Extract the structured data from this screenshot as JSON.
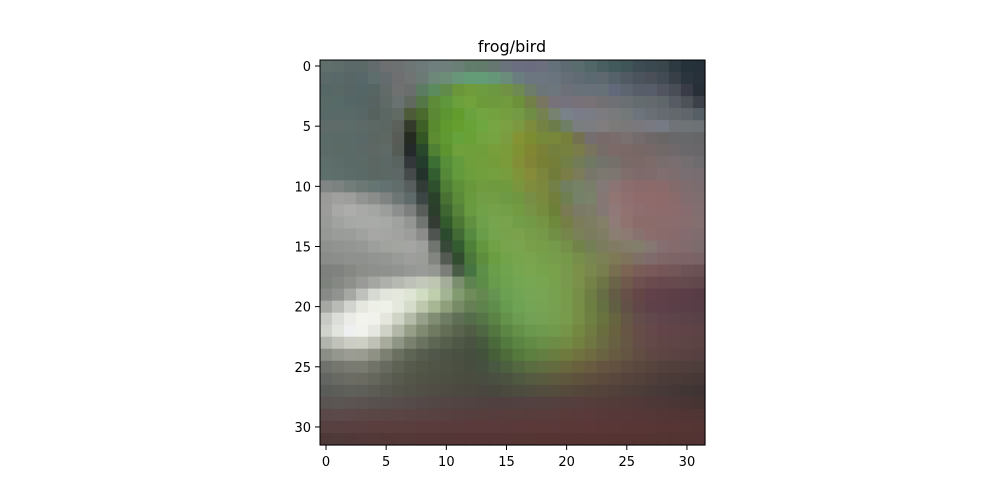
{
  "chart_data": {
    "type": "heatmap",
    "title": "frog/bird",
    "xlabel": "",
    "ylabel": "",
    "xlim": [
      -0.5,
      31.5
    ],
    "ylim": [
      31.5,
      -0.5
    ],
    "x_ticks": [
      0,
      5,
      10,
      15,
      20,
      25,
      30
    ],
    "y_ticks": [
      0,
      5,
      10,
      15,
      20,
      25,
      30
    ],
    "x_tick_labels": [
      "0",
      "5",
      "10",
      "15",
      "20",
      "25",
      "30"
    ],
    "y_tick_labels": [
      "0",
      "5",
      "10",
      "15",
      "20",
      "25",
      "30"
    ],
    "grid": false,
    "image_size": [
      32,
      32
    ],
    "image_rows_hex": [
      "606e6c,5e6c6a,5b6968,5b6967,646b6c,6e6f71,6e7172,6e7575,6e7a7a,6e7f7e,6e7f7c,6a7f75,637d6d,637b6b,667771,6a727b,6b6d81,6c6c81,6c6f7e,65717a,5e6b73,596d6e,526868,495f62,435a5c,3f5557,3c4c52,3a4850,39464c,2d3a41,26323a,26303a",
      "5b6968,59696a,586766,58686a,5e6e6c,656c6f,6f6f71,707472,6b7a75,6d8779,6e8d79,679679,639c77,639c76,669678,6b8b7b,6b7e7f,6b7681,6c7680,6a747e,656e76,616b74,5b6971,5f686f,556269,515a62,4b535d,4b4f57,424b53,383f47,2b353e,28303a",
      "566866,596765,586565,546666,576563,636b69,6e7170,6a6e6c,5c7c62,5c8c5d,608b4a,6c963a,709c3c,6c9b40,6c9842,719145,6e8952,6d7d69,6c7577,6c767c,6d7078,687178,676f78,667077,61697b,5c6570,575e6a,575d6a,525560,494e56,393c46,292f36",
      "596966,566a67,556766,556564,576361,5f6a67,697271,61695f,557646,5d8b38,5f983c,6ba03d,71a23c,6d9b3c,6e9a3d,729a3f,6d903b,728048,787560,77727a,75727d,787179,787277,727073,6e7076,6a6f73,656c6f,656a6e,60676b,575b63,4d5158,3c4048",
      "586967,596967,596967,586765,56625e,5b6762,616b64,4d5b38,4b6b2e,5a8834,5c9532,619c2d,69a23f,72a541,74a140,759e40,749a45,6f8d44,758151,778270,7a8289,7a7d89,7a7c85,7c7b7f,797a7c,737979,6d747b,6a6f76,656b70,62686c,5f656b,575f66",
      "5e6b69,5e6b69,5c6c68,5c6967,5c6863,5c6662,5c605b,343b2a,3e5f26,598a30,609a2f,669f30,68a337,6ea640,78a543,7ba043,7c9840,7d8b3c,748244,6c7c4a,6f7f65,7b7e7f,7c7d80,817c7d,7c7a78,7a7878,7a787c,797a81,767a85,707377,6e7375,6d7276",
      "5b6b68,5a6a67,5a6a67,5a6967,5c6763,5e6762,595c56,262b22,345524,5d8c33,609832,65a23b,6aa137,73a240,77a442,7c9c42,859335,7c8c31,76893a,788739,77803a,737150,756e70,776a68,7a6c6c,79706f,736b6c,6e6968,6a6665,68686a,66686a,666669",
      "5c6b68,5c6a66,5a6a66,5c6866,5e6763,5f6966,545c55,24292a,29482b,4f8033,5e9430,6fa03c,6e9f3b,709e3a,789e3b,7b9a39,7f9132,808632,7a8037,737f3c,76813f,7a7d4a,79745d,776d68,7b6a67,7a6866,776765,766868,716868,6f696c,6b686b,696769",
      "5e6e6a,5c6c68,5a6a66,5c6a66,5c6764,5b6865,596461,34373a,243c2c,3c6f33,568e39,649b3e,6f9e3c,729e3b,749c3a,7b9a3a,838f36,818437,788036,747e38,728048,727d57,6f7862,72736a,76706a,796a67,7b6968,7c6b69,7a6d6d,7a6e70,756e70,6f6c70",
      "5e706c,5e6e6a,5c6c68,5a6a67,5a6763,5b6863,5d6765,464a4a,23322a,335e2f,558839,629a3c,6d9e3d,729f3e,74a03f,779d3f,7f9438,858b38,7b853c,717c3b,7a7d45,7c7b5a,777669,7d786f,7d7570,7f6e6c,7f6a6b,7f6a6c,816e70,7d6d6f,796e71,786d70",
      "818583,7b8280,727c79,6b7873,657571,637271,606d6b,585e5e,323b36,2f502c,4f7e36,5d9039,69983c,719b3f,709a3f,709a3e,7a953e,7f8c3e,7a873d,738047,717e5f,768266,797e6a,837a78,8d7474,8c6d6e,8b6a6b,8b6a69,8a6a6b,836b6c,7e6c6f,7a6c6f",
      "9a9b98,a0a19f,9e9f9d,929493,8a8d8a,7f8381,6d7674,5e6969,3c4745,2a4229,497133,5b8a39,699a3e,709d45,729d45,6e9a45,719641,788d45,79893d,717e3c,707f52,768169,7a826a,857874,927674,906f70,906b6c,8f6b6b,8e6a6a,8a6b6c,836c6f,7f6e70",
      "9c9d9b,a8a9a7,adaeac,a9aaa8,a4a6a4,9c9e9c,8c8f8d,7c7f7e,585d5a,2b3d2b,3f6532,568239,699a42,70a047,76a14b,749f49,729b42,779345,758c3e,6d8038,7a7b54,7b7a67,7c7c68,847874,917979,917271,8f6e6f,8e6b6c,8d6a6b,8c6b6c,876c6f,816e70",
      "999b99,a1a3a1,a6a8a6,a8aaa8,a9aba9,a7a9a7,a0a2a0,949694,717572,333b32,325a2d,4c7734,629041,6ea04b,77a44e,79a34c,739e49,739a47,759545,6f893c,747e45,7d7c5a,7d7d62,837f69,8f7b77,90736f,8c6c6b,8c6b6b,8b6c6c,8a6b6e,886d6f,836e70",
      "969896,9a9c9a,9b9d9b,a0a29f,a7a8a5,a5a6a4,a2a3a1,9d9e9b,8c8d8a,505450,2c4a2d,416a34,568a40,6a9d49,74a44d,79a24d,7ba14c,779d4b,759949,728f46,76864a,7a8158,7a7c5d,7f7d63,8a7f72,8c7a73,887270,8a6d6c,8a6b6b,876b6c,836b6f,7f6c6e",
      "8e918d,919491,939693,969896,9c9f9c,a1a39f,a3a5a1,a5a6a3,9ea09d,707570,384838,345c31,4f803a,64963f,71a146,77a44c,7aa44f,799f4a,779d48,769a4b,759049,728349,757f55,7a7c5d,817b64,837c69,837d6c,857873,866f70,856b6c,816b6c,7d6c6e",
      "898c88,8b8e8a,8e918d,8f918f,919491,939693,999b98,9e9f9c,9b9d99,838581,535a52,314c2f,4b773b,5e8e3d,6a9c42,72a34a,77a54e,7aa44e,76a04b,779d4c,759849,768e4a,788651,7b8154,7e7a56,7f745b,7f7067,806b6c,7f6768,7d6467,7c6466,7a6366",
      "7d807c,7f827e,858883,8c8e8a,8e908d,8f918e,929491,969895,999b98,959793,7a7d78,475b45,467442,5d8f48,6b9e4b,70a34d,77a651,7ba650,77a34c,79a04b,79994c,7d9049,7a874d,787e4e,786f51,7c6552,7b5d58,795959,775658,735658,6e5356,6a5154",
      "7d827d,858883,8e908c,9a9b98,a4a6a2,adb0ab,b6b9b2,bdc1b7,c3c9ba,bec6b2,a4ad99,7b8f6f,5f8251,5d8c48,689b4b,6ea24e,73a552,78a753,78a550,78a14e,79994e,7b904a,758247,6d7446,6c6449,6f5a4b,6e5050,6c4b4f,684a4e,664a4e,64494d,61484c",
      "878a87,919390,a5a8a3,bfc2bc,d7dad2,e2e5db,e4e8dd,dfe5d4,d1ddc2,bfcfae,a2b493,839b71,6f8c5a,64884f,659450,6ba052,71a455,76a655,77a553,77a04f,779a4b,778e48,6e7d44,666c43,655c46,665047,654646,62414a,5f3f48,5c3e47,5a3d46,583c45",
      "a4a7a2,b8bbb6,d2d5cf,e6e8e0,eef0e7,eef1e7,e5e9dd,d5dcc9,bdc8ad,a7b693,8f9f7c,768b66,667f55,5f834d,5f8e4c,679b4f,6ea254,74a456,76a454,77a150,789a4c,768e46,6c7e42,657042,615f43,615146,614748,5f4249,5d4049,5b3f48,593e47,573d46",
      "c8cac5,dcdeda,ebece7,f2f3ed,f1f2eb,e5e7de,d0d4c7,b4bca9,97a08a,808d72,6e7c63,5e6f55,566d4b,567647,5b8346,64924b,6c9c51,72a055,74a154,769f4f,789a4b,778e47,6f8043,69733f,666540,645746,634d4a,61484c,5f454b,5d434a,5b4249,594148",
      "d0d2cc,e2e4de,eeeff0,f1f2ed,e6e7e0,cfd2c6,b2b7a7,969e88,7f8a70,6f7a60,646e56,5a634d,525d46,4f6743,537641,5c8644,649048,6a984c,6e9a4f,729a4c,759447,748842,6f7b40,6a6e3f,68623f,675644,674d48,654849,634549,614448,5f4347,5d4246",
      "b2b5ad,c1c3bb,ccceC5,cdcec4,bfc1b6,a7ab9c,8f9584,7a826f,6a735f,5e6754,565e4c,4f5746,4a5241,475a3d,4b6a3b,537a3e,5b8542,628c46,688e48,6d8d46,728a43,738140,707641,6b6b43,686043,665745,654e47,634947,614646,5f4546,5d4445,5b4344",
      "8a8e86,94978e,9b9d94,9b9c91,8f9185,7c8072,6a6f60,5f6555,575d4e,51574a,4d5345,4a5042,464e3f,43523b,465f39,4d6c3a,55783d,5d7f40,647f42,6a7d40,6f7a3f,70733f,6e6b40,6a6342,675b42,645442,614d42,5f4843,5d4543,5b4343,594142,574042",
      "6f726c,75776f,797b72,797a70,727368,676a5e,5e6254,575b4d,535748,505446,4e5244,4b4f41,484e3f,465040,485841,4c6040,536840,596d40,5f6d40,646b3f,68673e,69613e,685b3f,655540,625040,5e4b3f,5a473e,56443d,53413d,513f3c,4f3e3c,4d3d3b",
      "626561,686963,6b6c64,6b6b62,66675c,5f6055,595a4f,55564a,525347,505145,4e4f43,4c4d41,4a4c40,494d41,4a5041,4b5340,4f5840,545b40,585b3f,5c593e,5e563d,5f523d,5e4e3d,5c4a3d,59473d,56443c,53413b,4f3e3a,4c3c39,4a3a38,483937,463836",
      "5a5c59,5d5e5a,5f605a,5f5f59,5c5c55,585850,55554c,535249,514f46,4f4d44,4d4b42,4b4940,4a483f,49473f,49483f,4a4a3f,4c4c3f,4f4d3f,524d3e,544c3d,554a3c,55483b,54453b,53433b,51413a,4f3f3a,4c3d39,493b38,463937,443736,423635,403534",
      "5a5453,5b5553,5b5452,5a5351,585150,574f4e,564d4c,554b4a,544948,534746,524544,514443,504342,504241,504140,504140,514140,524140,534140,54403f,553f3e,553e3d,553d3c,543c3b,533b3a,523a39,503938,4e3837,4c3736,4a3635,483534,463433",
      "5b4949,5c4949,5c4848,5c4747,5b4646,5a4545,5a4444,594343,584242,584141,574040,573f3f,563e3e,563e3d,563d3d,563d3c,573d3c,573c3c,583c3b,583b3b,593b3a,593a3a,59393a,583939,573838,563838,553737,543737,533636,523636,513535,503535",
      "574040,584040,593f3f,593f3f,5a3e3e,5a3e3e,5a3d3d,5a3d3d,5a3c3c,5a3c3c,5a3b3b,5a3b3b,5a3a3a,5a3a3a,5a3a3a,5a393a,5b393a,5b3939,5b3939,5b3839,5b3838,5b3838,5b3738,5a3737,5a3737,593636,593636,583636,573535,573535,563535,553434",
      "4f3938,503939,513838,523838,533838,533737,543737,543737,553636,553636,553636,553535,553535,553535,553535,553535,563535,563535,563434,563434,563434,563434,563434,563434,553333,553333,553333,543333,543333,533232,533232,523232"
    ]
  }
}
